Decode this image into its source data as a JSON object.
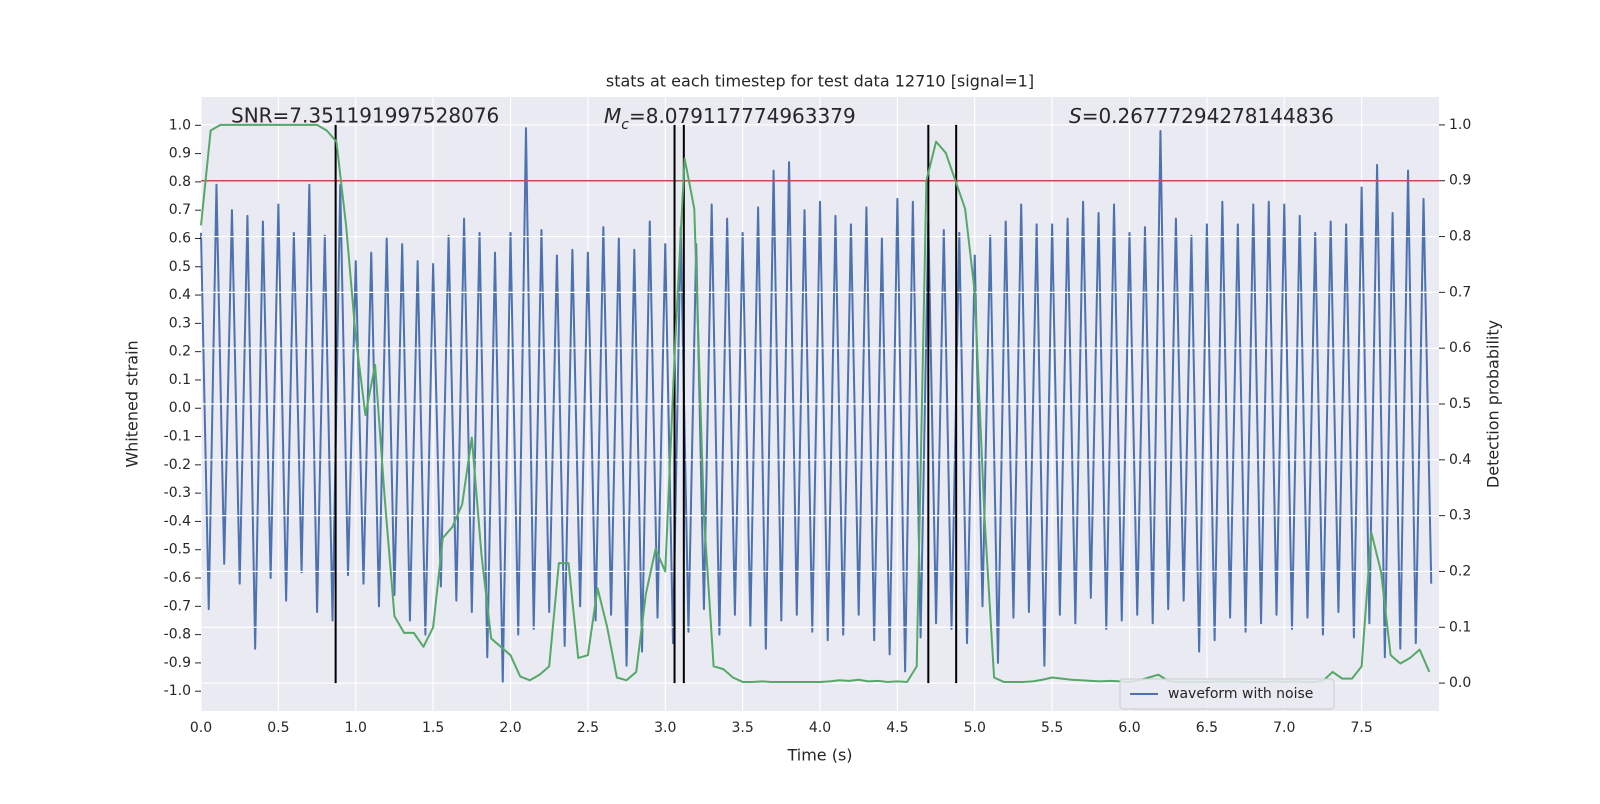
{
  "chart_data": {
    "type": "line",
    "title": "stats at each timestep for test data 12710 [signal=1]",
    "xlabel": "Time (s)",
    "ylabel": "Whitened strain",
    "y2label": "Detection probability",
    "annotations": [
      {
        "text": "SNR=7.351191997528076"
      },
      {
        "symbol": "M",
        "sub": "c",
        "text": "=8.079117774963379"
      },
      {
        "symbol": "S",
        "text": "=0.26777294278144836"
      }
    ],
    "xlim": [
      0,
      8
    ],
    "ylim": [
      -1.07,
      1.1
    ],
    "y2lim": [
      -0.05,
      1.05
    ],
    "xticks": [
      {
        "value": 0,
        "label": "0.0"
      },
      0.5,
      {
        "value": 1,
        "label": "1.0"
      },
      1.5,
      {
        "value": 2,
        "label": "2.0"
      },
      2.5,
      {
        "value": 3,
        "label": "3.0"
      },
      3.5,
      {
        "value": 4,
        "label": "4.0"
      },
      4.5,
      {
        "value": 5,
        "label": "5.0"
      },
      5.5,
      {
        "value": 6,
        "label": "6.0"
      },
      6.5,
      {
        "value": 7,
        "label": "7.0"
      },
      7.5
    ],
    "yticks": [
      {
        "value": 1,
        "label": "1.0"
      },
      0.9,
      0.8,
      0.7,
      0.6,
      0.5,
      0.4,
      0.3,
      0.2,
      0.1,
      {
        "value": 0,
        "label": "0.0"
      },
      -0.1,
      -0.2,
      -0.3,
      -0.4,
      -0.5,
      -0.6,
      -0.7,
      -0.8,
      -0.9,
      {
        "value": -1,
        "label": "-1.0"
      }
    ],
    "y2ticks": [
      {
        "value": 1,
        "label": "1.0"
      },
      0.9,
      0.8,
      0.7,
      0.6,
      0.5,
      0.4,
      0.3,
      0.2,
      0.1,
      {
        "value": 0,
        "label": "0.0"
      }
    ],
    "grid": true,
    "hline": {
      "value": 0.9,
      "axis": "y2",
      "color": "#c44e52"
    },
    "vlines": {
      "color": "#000000",
      "x": [
        0.87,
        3.06,
        3.12,
        4.7,
        4.88
      ]
    },
    "series": [
      {
        "name": "waveform with noise",
        "color": "#4c72b0",
        "x": [
          0,
          0.05,
          0.1,
          0.15,
          0.2,
          0.25,
          0.3,
          0.35,
          0.4,
          0.45,
          0.5,
          0.55,
          0.6,
          0.65,
          0.7,
          0.75,
          0.8,
          0.85,
          0.9,
          0.95,
          1,
          1.05,
          1.1,
          1.15,
          1.2,
          1.25,
          1.3,
          1.35,
          1.4,
          1.45,
          1.5,
          1.55,
          1.6,
          1.65,
          1.7,
          1.75,
          1.8,
          1.85,
          1.9,
          1.95,
          2,
          2.05,
          2.1,
          2.15,
          2.2,
          2.25,
          2.3,
          2.35,
          2.4,
          2.45,
          2.5,
          2.55,
          2.6,
          2.65,
          2.7,
          2.75,
          2.8,
          2.85,
          2.9,
          2.95,
          3,
          3.05,
          3.1,
          3.15,
          3.2,
          3.25,
          3.3,
          3.35,
          3.4,
          3.45,
          3.5,
          3.55,
          3.6,
          3.65,
          3.7,
          3.75,
          3.8,
          3.85,
          3.9,
          3.95,
          4,
          4.05,
          4.1,
          4.15,
          4.2,
          4.25,
          4.3,
          4.35,
          4.4,
          4.45,
          4.5,
          4.55,
          4.6,
          4.65,
          4.7,
          4.75,
          4.8,
          4.85,
          4.9,
          4.95,
          5,
          5.05,
          5.1,
          5.15,
          5.2,
          5.25,
          5.3,
          5.35,
          5.4,
          5.45,
          5.5,
          5.55,
          5.6,
          5.65,
          5.7,
          5.75,
          5.8,
          5.85,
          5.9,
          5.95,
          6,
          6.05,
          6.1,
          6.15,
          6.2,
          6.25,
          6.3,
          6.35,
          6.4,
          6.45,
          6.5,
          6.55,
          6.6,
          6.65,
          6.7,
          6.75,
          6.8,
          6.85,
          6.9,
          6.95,
          7,
          7.05,
          7.1,
          7.15,
          7.2,
          7.25,
          7.3,
          7.35,
          7.4,
          7.45,
          7.5,
          7.55,
          7.6,
          7.65,
          7.7,
          7.75,
          7.8,
          7.85,
          7.9,
          7.95
        ],
        "values": [
          0.62,
          -0.71,
          0.79,
          -0.55,
          0.7,
          -0.62,
          0.68,
          -0.85,
          0.66,
          -0.6,
          0.72,
          -0.68,
          0.62,
          -0.58,
          0.79,
          -0.72,
          0.61,
          -0.75,
          0.79,
          -0.59,
          0.52,
          -0.62,
          0.55,
          -0.7,
          0.6,
          -0.66,
          0.58,
          -0.75,
          0.52,
          -0.8,
          0.51,
          -0.63,
          0.61,
          -0.68,
          0.67,
          -0.72,
          0.62,
          -0.88,
          0.55,
          -0.97,
          0.62,
          -0.8,
          0.99,
          -0.78,
          0.63,
          -0.72,
          0.54,
          -0.84,
          0.56,
          -0.7,
          0.55,
          -0.75,
          0.64,
          -0.73,
          0.6,
          -0.91,
          0.56,
          -0.86,
          0.66,
          -0.74,
          0.58,
          -0.83,
          0.64,
          -0.79,
          0.58,
          -0.71,
          0.72,
          -0.8,
          0.67,
          -0.73,
          0.62,
          -0.77,
          0.71,
          -0.85,
          0.84,
          -0.75,
          0.87,
          -0.73,
          0.7,
          -0.79,
          0.73,
          -0.82,
          0.68,
          -0.8,
          0.65,
          -0.73,
          0.71,
          -0.82,
          0.6,
          -0.87,
          0.74,
          -0.93,
          0.73,
          -0.81,
          0.66,
          -0.76,
          0.63,
          -0.78,
          0.62,
          -0.83,
          0.54,
          -0.7,
          0.61,
          -0.9,
          0.66,
          -0.74,
          0.72,
          -0.72,
          0.65,
          -0.91,
          0.65,
          -0.73,
          0.67,
          -0.76,
          0.73,
          -0.67,
          0.69,
          -0.78,
          0.72,
          -0.75,
          0.62,
          -0.73,
          0.64,
          -0.76,
          0.98,
          -0.71,
          0.67,
          -0.68,
          0.61,
          -0.86,
          0.65,
          -0.82,
          0.73,
          -0.74,
          0.65,
          -0.79,
          0.72,
          -0.76,
          0.73,
          -0.73,
          0.72,
          -0.78,
          0.68,
          -0.74,
          0.62,
          -0.8,
          0.66,
          -0.72,
          0.65,
          -0.81,
          0.78,
          -0.76,
          0.86,
          -0.88,
          0.69,
          -0.85,
          0.84,
          -0.83,
          0.74,
          -0.62
        ]
      },
      {
        "color": "#55a868",
        "axis": "y2",
        "x": [
          0,
          0.0625,
          0.125,
          0.1875,
          0.25,
          0.3125,
          0.375,
          0.4375,
          0.5,
          0.5625,
          0.625,
          0.6875,
          0.75,
          0.8125,
          0.875,
          0.9375,
          1,
          1.0625,
          1.125,
          1.1875,
          1.25,
          1.3125,
          1.375,
          1.4375,
          1.5,
          1.5625,
          1.625,
          1.6875,
          1.75,
          1.8125,
          1.875,
          1.9375,
          2,
          2.0625,
          2.125,
          2.1875,
          2.25,
          2.3125,
          2.375,
          2.4375,
          2.5,
          2.5625,
          2.625,
          2.6875,
          2.75,
          2.8125,
          2.875,
          2.9375,
          3,
          3.0625,
          3.125,
          3.1875,
          3.25,
          3.3125,
          3.375,
          3.4375,
          3.5,
          3.5625,
          3.625,
          3.6875,
          3.75,
          3.8125,
          3.875,
          3.9375,
          4,
          4.0625,
          4.125,
          4.1875,
          4.25,
          4.3125,
          4.375,
          4.4375,
          4.5,
          4.5625,
          4.625,
          4.6875,
          4.75,
          4.8125,
          4.875,
          4.9375,
          5,
          5.0625,
          5.125,
          5.1875,
          5.25,
          5.3125,
          5.375,
          5.4375,
          5.5,
          5.5625,
          5.625,
          5.6875,
          5.75,
          5.8125,
          5.875,
          5.9375,
          6,
          6.0625,
          6.125,
          6.1875,
          6.25,
          6.3125,
          6.375,
          6.4375,
          6.5,
          6.5625,
          6.625,
          6.6875,
          6.75,
          6.8125,
          6.875,
          6.9375,
          7,
          7.0625,
          7.125,
          7.1875,
          7.25,
          7.3125,
          7.375,
          7.4375,
          7.5,
          7.5625,
          7.625,
          7.6875,
          7.75,
          7.8125,
          7.875,
          7.9375
        ],
        "values": [
          0.82,
          0.99,
          1.0,
          1.0,
          1.0,
          1.0,
          1.0,
          1.0,
          1.0,
          1.0,
          1.0,
          1.0,
          1.0,
          0.99,
          0.97,
          0.82,
          0.62,
          0.48,
          0.57,
          0.33,
          0.12,
          0.09,
          0.09,
          0.065,
          0.1,
          0.26,
          0.28,
          0.32,
          0.44,
          0.23,
          0.08,
          0.065,
          0.05,
          0.012,
          0.005,
          0.015,
          0.03,
          0.215,
          0.215,
          0.045,
          0.05,
          0.17,
          0.1,
          0.01,
          0.005,
          0.02,
          0.16,
          0.24,
          0.2,
          0.6,
          0.94,
          0.85,
          0.3,
          0.03,
          0.025,
          0.01,
          0.002,
          0.002,
          0.003,
          0.002,
          0.002,
          0.002,
          0.002,
          0.002,
          0.002,
          0.003,
          0.005,
          0.004,
          0.006,
          0.003,
          0.004,
          0.002,
          0.003,
          0.002,
          0.03,
          0.9,
          0.97,
          0.95,
          0.9,
          0.85,
          0.7,
          0.3,
          0.01,
          0.002,
          0.002,
          0.002,
          0.003,
          0.006,
          0.01,
          0.008,
          0.006,
          0.005,
          0.004,
          0.003,
          0.004,
          0.003,
          0.002,
          0.005,
          0.01,
          0.015,
          0.004,
          0.002,
          0.002,
          0.002,
          0.002,
          0.003,
          0.003,
          0.003,
          0.002,
          0.002,
          0.002,
          0.003,
          0.002,
          0.003,
          0.002,
          0.002,
          0.004,
          0.02,
          0.008,
          0.008,
          0.03,
          0.27,
          0.2,
          0.05,
          0.035,
          0.045,
          0.06,
          0.02
        ]
      }
    ]
  }
}
